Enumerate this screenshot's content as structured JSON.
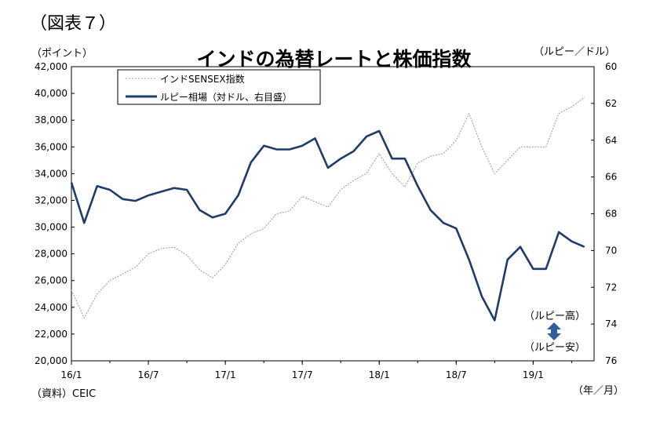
{
  "figure_label": "（図表７）",
  "title": "インドの為替レートと株価指数",
  "y_left_unit": "（ポイント）",
  "y_right_unit": "（ルピー／ドル）",
  "x_unit": "（年／月）",
  "source": "（資料）CEIC",
  "colors": {
    "sensex": "#9a9a9a",
    "rupee": "#1f3c68",
    "arrow": "#2e5f9e"
  },
  "chart_data": {
    "type": "line",
    "title": "インドの為替レートと株価指数",
    "x_ticks": [
      "16/1",
      "16/7",
      "17/1",
      "17/7",
      "18/1",
      "18/7",
      "19/1"
    ],
    "x_range_months": [
      "2016-01",
      "2019-05"
    ],
    "y_left": {
      "range": [
        20000,
        42000
      ],
      "ticks": [
        "20,000",
        "22,000",
        "24,000",
        "26,000",
        "28,000",
        "30,000",
        "32,000",
        "34,000",
        "36,000",
        "38,000",
        "40,000",
        "42,000"
      ]
    },
    "y_right": {
      "range": [
        60,
        76
      ],
      "inverted": true,
      "ticks": [
        "60",
        "62",
        "64",
        "66",
        "68",
        "70",
        "72",
        "74",
        "76"
      ]
    },
    "legend": {
      "placement": "top-left",
      "entries": [
        "インドSENSEX指数",
        "ルピー相場（対ドル、右目盛）"
      ]
    },
    "annotations": {
      "up": "（ルピー高）",
      "down": "（ルピー安）"
    },
    "series": [
      {
        "name": "インドSENSEX指数",
        "axis": "left",
        "style": "dashed",
        "x": [
          "2016-01",
          "2016-02",
          "2016-03",
          "2016-04",
          "2016-05",
          "2016-06",
          "2016-07",
          "2016-08",
          "2016-09",
          "2016-10",
          "2016-11",
          "2016-12",
          "2017-01",
          "2017-02",
          "2017-03",
          "2017-04",
          "2017-05",
          "2017-06",
          "2017-07",
          "2017-08",
          "2017-09",
          "2017-10",
          "2017-11",
          "2017-12",
          "2018-01",
          "2018-02",
          "2018-03",
          "2018-04",
          "2018-05",
          "2018-06",
          "2018-07",
          "2018-08",
          "2018-09",
          "2018-10",
          "2018-11",
          "2018-12",
          "2019-01",
          "2019-02",
          "2019-03",
          "2019-04",
          "2019-05"
        ],
        "values": [
          25300,
          23200,
          25000,
          26000,
          26500,
          27000,
          28000,
          28400,
          28500,
          27900,
          26800,
          26200,
          27200,
          28800,
          29500,
          29900,
          31000,
          31200,
          32300,
          31900,
          31500,
          32800,
          33500,
          34000,
          35500,
          34000,
          33000,
          34800,
          35300,
          35500,
          36500,
          38500,
          36000,
          34000,
          35000,
          36000,
          36000,
          36000,
          38500,
          39000,
          39700
        ]
      },
      {
        "name": "ルピー相場（対ドル、右目盛）",
        "axis": "right",
        "style": "solid",
        "x": [
          "2016-01",
          "2016-02",
          "2016-03",
          "2016-04",
          "2016-05",
          "2016-06",
          "2016-07",
          "2016-08",
          "2016-09",
          "2016-10",
          "2016-11",
          "2016-12",
          "2017-01",
          "2017-02",
          "2017-03",
          "2017-04",
          "2017-05",
          "2017-06",
          "2017-07",
          "2017-08",
          "2017-09",
          "2017-10",
          "2017-11",
          "2017-12",
          "2018-01",
          "2018-02",
          "2018-03",
          "2018-04",
          "2018-05",
          "2018-06",
          "2018-07",
          "2018-08",
          "2018-09",
          "2018-10",
          "2018-11",
          "2018-12",
          "2019-01",
          "2019-02",
          "2019-03",
          "2019-04",
          "2019-05"
        ],
        "values": [
          66.3,
          68.5,
          66.5,
          66.7,
          67.2,
          67.3,
          67.0,
          66.8,
          66.6,
          66.7,
          67.8,
          68.2,
          68.0,
          67.0,
          65.2,
          64.3,
          64.5,
          64.5,
          64.3,
          63.9,
          65.5,
          65.0,
          64.6,
          63.8,
          63.5,
          65.0,
          65.0,
          66.5,
          67.8,
          68.5,
          68.8,
          70.5,
          72.5,
          73.8,
          70.5,
          69.8,
          71.0,
          71.0,
          69.0,
          69.5,
          69.8
        ]
      }
    ]
  }
}
